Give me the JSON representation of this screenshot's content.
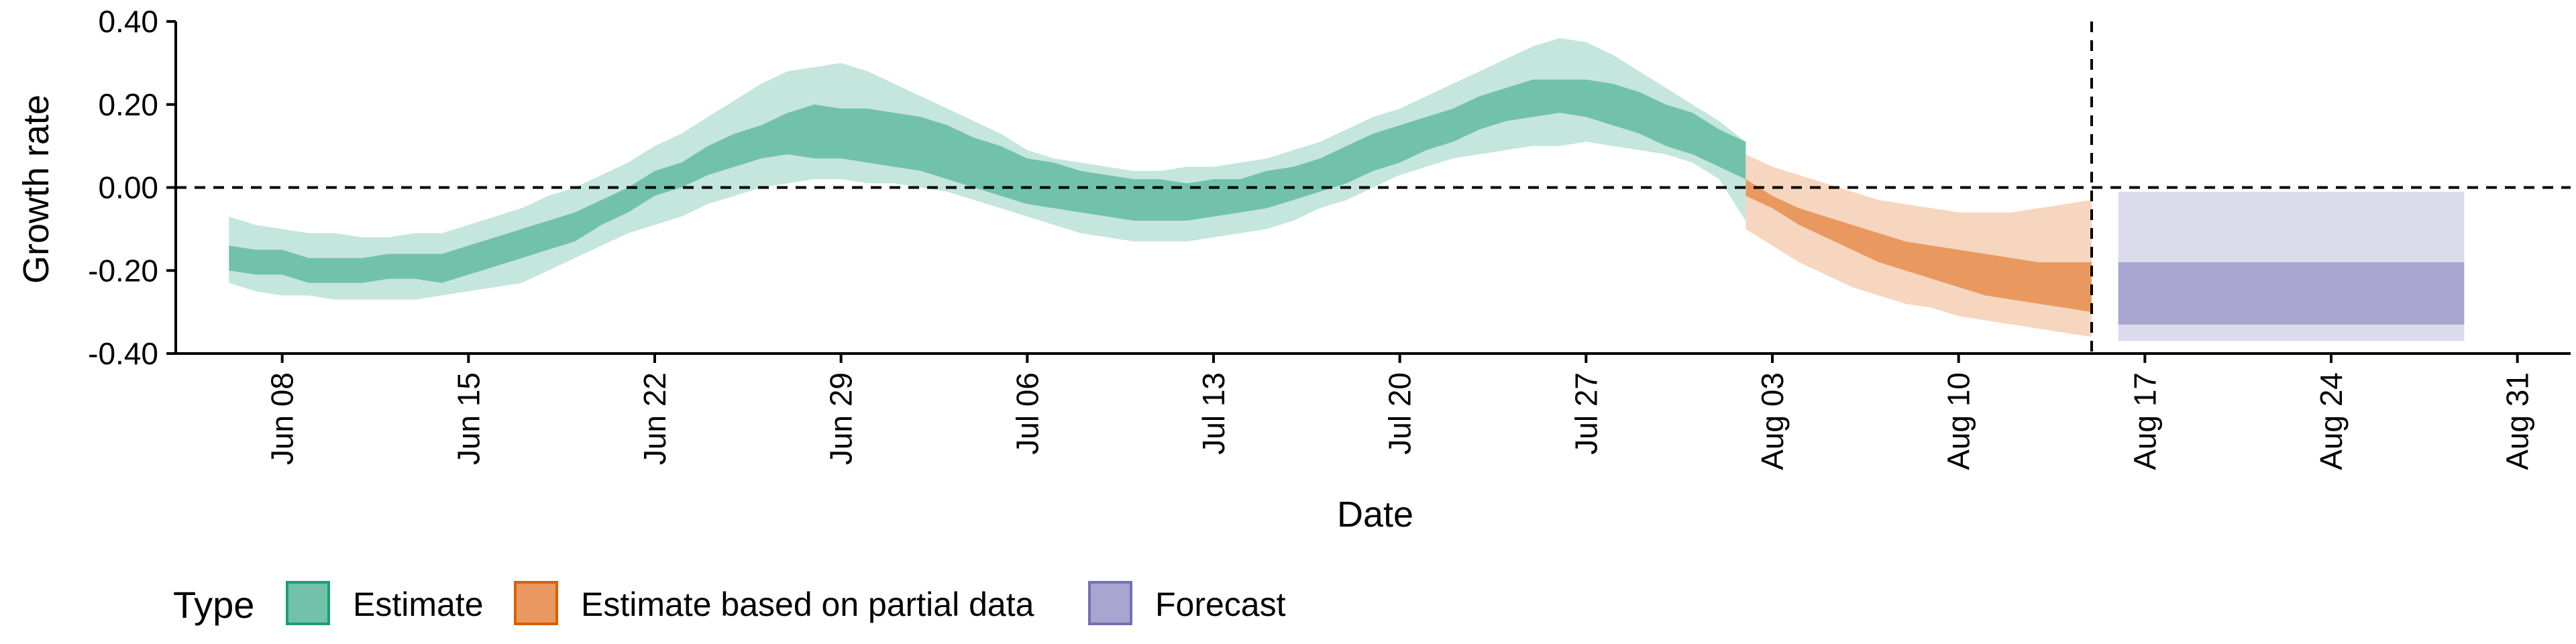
{
  "chart_data": {
    "type": "area",
    "title": "",
    "xlabel": "Date",
    "ylabel": "Growth rate",
    "xlim": [
      "2020-06-04",
      "2020-09-02"
    ],
    "ylim": [
      -0.4,
      0.4
    ],
    "y_ticks": [
      -0.4,
      -0.2,
      0.0,
      0.2,
      0.4
    ],
    "y_tick_labels": [
      "-0.40",
      "-0.20",
      "0.00",
      "0.20",
      "0.40"
    ],
    "x_ticks": [
      "2020-06-08",
      "2020-06-15",
      "2020-06-22",
      "2020-06-29",
      "2020-07-06",
      "2020-07-13",
      "2020-07-20",
      "2020-07-27",
      "2020-08-03",
      "2020-08-10",
      "2020-08-17",
      "2020-08-24",
      "2020-08-31"
    ],
    "x_tick_labels": [
      "Jun 08",
      "Jun 15",
      "Jun 22",
      "Jun 29",
      "Jul 06",
      "Jul 13",
      "Jul 20",
      "Jul 27",
      "Aug 03",
      "Aug 10",
      "Aug 17",
      "Aug 24",
      "Aug 31"
    ],
    "zero_line": 0,
    "vertical_line": "2020-08-15",
    "grid": false,
    "legend": {
      "position": "bottom-left",
      "title": "Type",
      "entries": [
        "Estimate",
        "Estimate based on partial data",
        "Forecast"
      ]
    },
    "series": [
      {
        "name": "Estimate",
        "fill_outer": "#c5e6dc",
        "fill_inner": "#72c2aa",
        "stroke": "#1b9e77",
        "x": [
          "2020-06-06",
          "2020-06-07",
          "2020-06-08",
          "2020-06-09",
          "2020-06-10",
          "2020-06-11",
          "2020-06-12",
          "2020-06-13",
          "2020-06-14",
          "2020-06-15",
          "2020-06-16",
          "2020-06-17",
          "2020-06-18",
          "2020-06-19",
          "2020-06-20",
          "2020-06-21",
          "2020-06-22",
          "2020-06-23",
          "2020-06-24",
          "2020-06-25",
          "2020-06-26",
          "2020-06-27",
          "2020-06-28",
          "2020-06-29",
          "2020-06-30",
          "2020-07-01",
          "2020-07-02",
          "2020-07-03",
          "2020-07-04",
          "2020-07-05",
          "2020-07-06",
          "2020-07-07",
          "2020-07-08",
          "2020-07-09",
          "2020-07-10",
          "2020-07-11",
          "2020-07-12",
          "2020-07-13",
          "2020-07-14",
          "2020-07-15",
          "2020-07-16",
          "2020-07-17",
          "2020-07-18",
          "2020-07-19",
          "2020-07-20",
          "2020-07-21",
          "2020-07-22",
          "2020-07-23",
          "2020-07-24",
          "2020-07-25",
          "2020-07-26",
          "2020-07-27",
          "2020-07-28",
          "2020-07-29",
          "2020-07-30",
          "2020-07-31",
          "2020-08-01",
          "2020-08-02"
        ],
        "outer_lower": [
          -0.23,
          -0.25,
          -0.26,
          -0.26,
          -0.27,
          -0.27,
          -0.27,
          -0.27,
          -0.26,
          -0.25,
          -0.24,
          -0.23,
          -0.2,
          -0.17,
          -0.14,
          -0.11,
          -0.09,
          -0.07,
          -0.04,
          -0.02,
          0.0,
          0.01,
          0.02,
          0.02,
          0.01,
          0.01,
          0.0,
          -0.01,
          -0.03,
          -0.05,
          -0.07,
          -0.09,
          -0.11,
          -0.12,
          -0.13,
          -0.13,
          -0.13,
          -0.12,
          -0.11,
          -0.1,
          -0.08,
          -0.05,
          -0.03,
          0.0,
          0.03,
          0.05,
          0.07,
          0.08,
          0.09,
          0.1,
          0.1,
          0.11,
          0.1,
          0.09,
          0.08,
          0.06,
          0.02,
          -0.08
        ],
        "inner_lower": [
          -0.2,
          -0.21,
          -0.21,
          -0.23,
          -0.23,
          -0.23,
          -0.22,
          -0.22,
          -0.23,
          -0.21,
          -0.19,
          -0.17,
          -0.15,
          -0.13,
          -0.09,
          -0.06,
          -0.02,
          0.0,
          0.03,
          0.05,
          0.07,
          0.08,
          0.07,
          0.07,
          0.06,
          0.05,
          0.04,
          0.02,
          0.0,
          -0.02,
          -0.04,
          -0.05,
          -0.06,
          -0.07,
          -0.08,
          -0.08,
          -0.08,
          -0.07,
          -0.06,
          -0.05,
          -0.03,
          -0.01,
          0.01,
          0.04,
          0.06,
          0.09,
          0.11,
          0.14,
          0.16,
          0.17,
          0.18,
          0.17,
          0.15,
          0.13,
          0.1,
          0.08,
          0.05,
          0.02
        ],
        "inner_upper": [
          -0.14,
          -0.15,
          -0.15,
          -0.17,
          -0.17,
          -0.17,
          -0.16,
          -0.16,
          -0.16,
          -0.14,
          -0.12,
          -0.1,
          -0.08,
          -0.06,
          -0.03,
          0.0,
          0.04,
          0.06,
          0.1,
          0.13,
          0.15,
          0.18,
          0.2,
          0.19,
          0.19,
          0.18,
          0.17,
          0.15,
          0.12,
          0.1,
          0.07,
          0.06,
          0.04,
          0.03,
          0.02,
          0.02,
          0.01,
          0.02,
          0.02,
          0.04,
          0.05,
          0.07,
          0.1,
          0.13,
          0.15,
          0.17,
          0.19,
          0.22,
          0.24,
          0.26,
          0.26,
          0.26,
          0.25,
          0.23,
          0.2,
          0.18,
          0.14,
          0.11
        ],
        "outer_upper": [
          -0.07,
          -0.09,
          -0.1,
          -0.11,
          -0.11,
          -0.12,
          -0.12,
          -0.11,
          -0.11,
          -0.09,
          -0.07,
          -0.05,
          -0.02,
          0.0,
          0.03,
          0.06,
          0.1,
          0.13,
          0.17,
          0.21,
          0.25,
          0.28,
          0.29,
          0.3,
          0.28,
          0.25,
          0.22,
          0.19,
          0.16,
          0.13,
          0.09,
          0.07,
          0.06,
          0.05,
          0.04,
          0.04,
          0.05,
          0.05,
          0.06,
          0.07,
          0.09,
          0.11,
          0.14,
          0.17,
          0.19,
          0.22,
          0.25,
          0.28,
          0.31,
          0.34,
          0.36,
          0.35,
          0.32,
          0.28,
          0.24,
          0.2,
          0.16,
          0.11
        ]
      },
      {
        "name": "Estimate based on partial data",
        "fill_outer": "#f6d6bf",
        "fill_inner": "#e99960",
        "stroke": "#d95f02",
        "x": [
          "2020-08-02",
          "2020-08-03",
          "2020-08-04",
          "2020-08-05",
          "2020-08-06",
          "2020-08-07",
          "2020-08-08",
          "2020-08-09",
          "2020-08-10",
          "2020-08-11",
          "2020-08-12",
          "2020-08-13",
          "2020-08-14",
          "2020-08-15"
        ],
        "outer_lower": [
          -0.1,
          -0.14,
          -0.18,
          -0.21,
          -0.24,
          -0.26,
          -0.28,
          -0.29,
          -0.31,
          -0.32,
          -0.33,
          -0.34,
          -0.35,
          -0.36
        ],
        "inner_lower": [
          -0.02,
          -0.05,
          -0.09,
          -0.12,
          -0.15,
          -0.18,
          -0.2,
          -0.22,
          -0.24,
          -0.26,
          -0.27,
          -0.28,
          -0.29,
          -0.3
        ],
        "inner_upper": [
          0.02,
          -0.02,
          -0.05,
          -0.07,
          -0.09,
          -0.11,
          -0.13,
          -0.14,
          -0.15,
          -0.16,
          -0.17,
          -0.18,
          -0.18,
          -0.18
        ],
        "outer_upper": [
          0.08,
          0.05,
          0.03,
          0.01,
          -0.01,
          -0.03,
          -0.04,
          -0.05,
          -0.06,
          -0.06,
          -0.06,
          -0.05,
          -0.04,
          -0.03
        ]
      },
      {
        "name": "Forecast",
        "fill_outer": "#dcdbec",
        "fill_inner": "#a8a5d1",
        "stroke": "#7570b3",
        "x": [
          "2020-08-16",
          "2020-08-29"
        ],
        "outer_lower": [
          -0.37,
          -0.37
        ],
        "inner_lower": [
          -0.33,
          -0.33
        ],
        "inner_upper": [
          -0.18,
          -0.18
        ],
        "outer_upper": [
          -0.01,
          -0.01
        ]
      }
    ]
  }
}
